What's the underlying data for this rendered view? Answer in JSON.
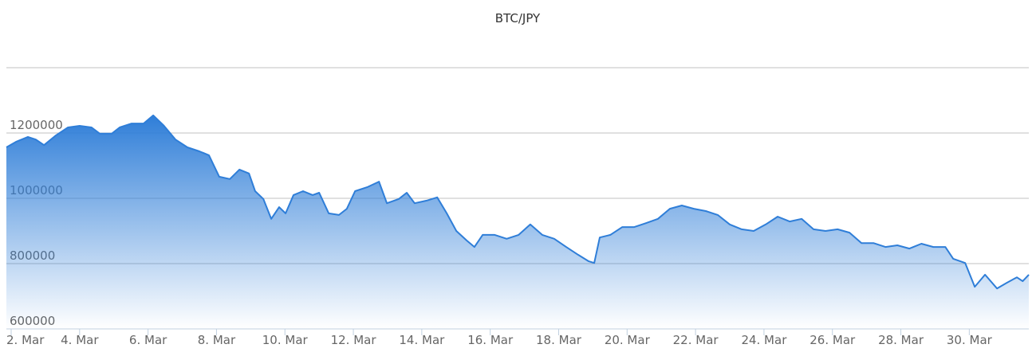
{
  "chart_data": {
    "type": "area",
    "title": "BTC/JPY",
    "x": [
      1.86,
      2.14,
      2.49,
      2.72,
      2.96,
      3.31,
      3.66,
      4.0,
      4.35,
      4.59,
      4.94,
      5.17,
      5.52,
      5.87,
      6.15,
      6.45,
      6.8,
      7.15,
      7.5,
      7.78,
      8.08,
      8.39,
      8.67,
      8.95,
      9.13,
      9.37,
      9.6,
      9.83,
      10.02,
      10.25,
      10.53,
      10.81,
      11.0,
      11.28,
      11.58,
      11.81,
      12.05,
      12.4,
      12.75,
      12.98,
      13.33,
      13.56,
      13.79,
      14.14,
      14.45,
      14.73,
      15.01,
      15.31,
      15.54,
      15.78,
      16.13,
      16.48,
      16.83,
      17.17,
      17.52,
      17.87,
      18.22,
      18.57,
      18.88,
      19.04,
      19.2,
      19.51,
      19.86,
      20.21,
      20.55,
      20.9,
      21.25,
      21.6,
      21.95,
      22.3,
      22.65,
      23.0,
      23.35,
      23.7,
      24.05,
      24.4,
      24.75,
      25.1,
      25.45,
      25.8,
      26.15,
      26.5,
      26.85,
      27.2,
      27.55,
      27.9,
      28.25,
      28.6,
      28.95,
      29.3,
      29.53,
      29.88,
      30.16,
      30.46,
      30.81,
      31.09,
      31.39,
      31.56,
      31.74
    ],
    "series": [
      {
        "name": "BTC/JPY",
        "color": "#2f7ed8",
        "values": [
          1156000,
          1173000,
          1188000,
          1180000,
          1163000,
          1193000,
          1217000,
          1222000,
          1217000,
          1198000,
          1198000,
          1217000,
          1229000,
          1229000,
          1254000,
          1224000,
          1180000,
          1156000,
          1144000,
          1132000,
          1066000,
          1059000,
          1088000,
          1076000,
          1022000,
          998000,
          937000,
          973000,
          954000,
          1010000,
          1022000,
          1010000,
          1017000,
          954000,
          949000,
          968000,
          1022000,
          1034000,
          1051000,
          985000,
          998000,
          1017000,
          985000,
          993000,
          1003000,
          954000,
          900000,
          871000,
          851000,
          888000,
          888000,
          876000,
          888000,
          920000,
          888000,
          876000,
          851000,
          827000,
          807000,
          802000,
          880000,
          888000,
          912000,
          912000,
          924000,
          937000,
          968000,
          978000,
          968000,
          961000,
          949000,
          920000,
          905000,
          900000,
          920000,
          944000,
          929000,
          937000,
          905000,
          900000,
          905000,
          895000,
          863000,
          863000,
          851000,
          856000,
          846000,
          861000,
          851000,
          851000,
          815000,
          802000,
          729000,
          766000,
          724000,
          741000,
          758000,
          746000,
          766000
        ]
      }
    ],
    "xlim": [
      1.86,
      31.74
    ],
    "xticks": [
      {
        "value": 2,
        "label": "2. Mar"
      },
      {
        "value": 4,
        "label": "4. Mar"
      },
      {
        "value": 6,
        "label": "6. Mar"
      },
      {
        "value": 8,
        "label": "8. Mar"
      },
      {
        "value": 10,
        "label": "10. Mar"
      },
      {
        "value": 12,
        "label": "12. Mar"
      },
      {
        "value": 14,
        "label": "14. Mar"
      },
      {
        "value": 16,
        "label": "16. Mar"
      },
      {
        "value": 18,
        "label": "18. Mar"
      },
      {
        "value": 20,
        "label": "20. Mar"
      },
      {
        "value": 22,
        "label": "22. Mar"
      },
      {
        "value": 24,
        "label": "24. Mar"
      },
      {
        "value": 26,
        "label": "26. Mar"
      },
      {
        "value": 28,
        "label": "28. Mar"
      },
      {
        "value": 30,
        "label": "30. Mar"
      }
    ],
    "ylim": [
      600000,
      1400000
    ],
    "yticks": [
      600000,
      800000,
      1000000,
      1200000
    ],
    "grid": true
  }
}
